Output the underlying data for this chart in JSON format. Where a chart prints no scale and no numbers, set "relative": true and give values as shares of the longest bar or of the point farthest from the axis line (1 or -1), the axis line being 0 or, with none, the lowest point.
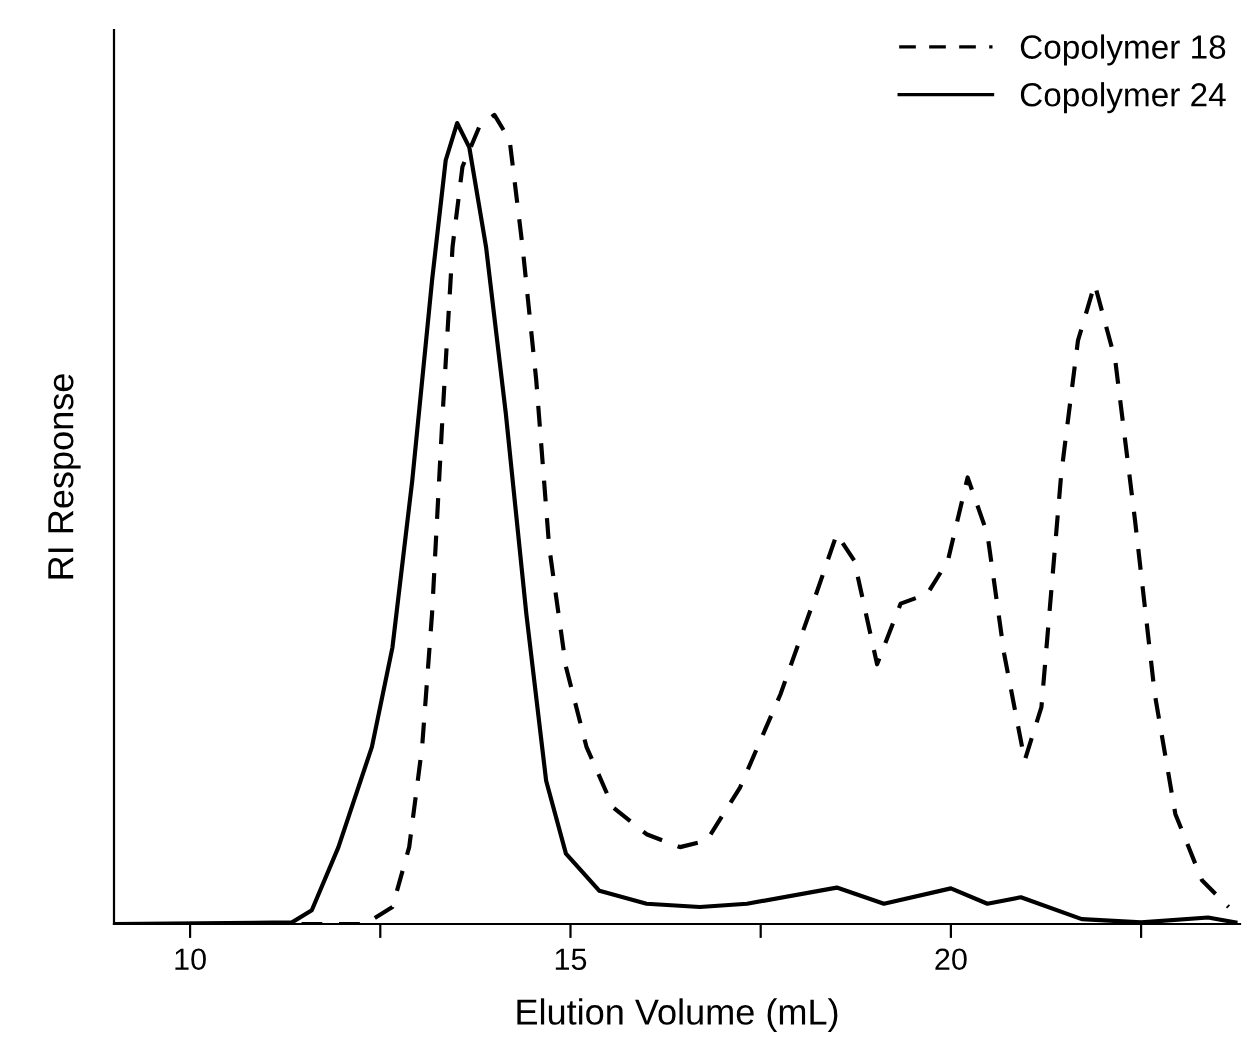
{
  "chart_data": {
    "type": "line",
    "xlabel": "Elution Volume (mL)",
    "ylabel": "RI Response",
    "relative": true,
    "xlim": [
      9,
      23.8
    ],
    "xticks": [
      10,
      {
        "value": 12.5,
        "label": null
      },
      15,
      {
        "value": 17.5,
        "label": null
      },
      20,
      {
        "value": 22.5,
        "label": null
      }
    ],
    "legend": "top right",
    "grid": false,
    "series": [
      {
        "name": "Copolymer 18",
        "color": "#000000",
        "line_style": "dashed",
        "x": [
          9.0,
          12.3,
          12.66,
          12.88,
          13.05,
          13.18,
          13.32,
          13.45,
          13.58,
          13.8,
          14.0,
          14.2,
          14.37,
          14.55,
          14.72,
          14.94,
          15.21,
          15.56,
          16.0,
          16.44,
          16.79,
          17.23,
          17.76,
          18.2,
          18.5,
          18.73,
          19.03,
          19.34,
          19.69,
          19.96,
          20.22,
          20.48,
          20.7,
          20.97,
          21.19,
          21.45,
          21.67,
          21.89,
          22.16,
          22.42,
          22.68,
          22.95,
          23.3,
          23.65
        ],
        "values": [
          0.0,
          0.0,
          0.021,
          0.095,
          0.219,
          0.383,
          0.631,
          0.837,
          0.936,
          0.985,
          1.0,
          0.969,
          0.837,
          0.672,
          0.466,
          0.318,
          0.219,
          0.144,
          0.111,
          0.095,
          0.103,
          0.169,
          0.284,
          0.4,
          0.482,
          0.449,
          0.321,
          0.396,
          0.408,
          0.449,
          0.552,
          0.482,
          0.334,
          0.202,
          0.268,
          0.556,
          0.721,
          0.791,
          0.697,
          0.499,
          0.284,
          0.136,
          0.054,
          0.021
        ]
      },
      {
        "name": "Copolymer 24",
        "color": "#000000",
        "line_style": "solid",
        "x": [
          9.0,
          11.34,
          11.6,
          11.95,
          12.39,
          12.66,
          12.92,
          13.18,
          13.36,
          13.51,
          13.67,
          13.89,
          14.15,
          14.42,
          14.68,
          14.94,
          15.38,
          16.0,
          16.7,
          17.32,
          18.5,
          19.12,
          20.0,
          20.48,
          20.92,
          21.72,
          22.5,
          23.38,
          23.74
        ],
        "values": [
          0.0,
          0.002,
          0.017,
          0.095,
          0.219,
          0.342,
          0.548,
          0.795,
          0.944,
          0.99,
          0.96,
          0.837,
          0.631,
          0.383,
          0.177,
          0.087,
          0.041,
          0.025,
          0.021,
          0.025,
          0.045,
          0.025,
          0.044,
          0.025,
          0.033,
          0.006,
          0.002,
          0.008,
          0.002
        ]
      }
    ]
  }
}
